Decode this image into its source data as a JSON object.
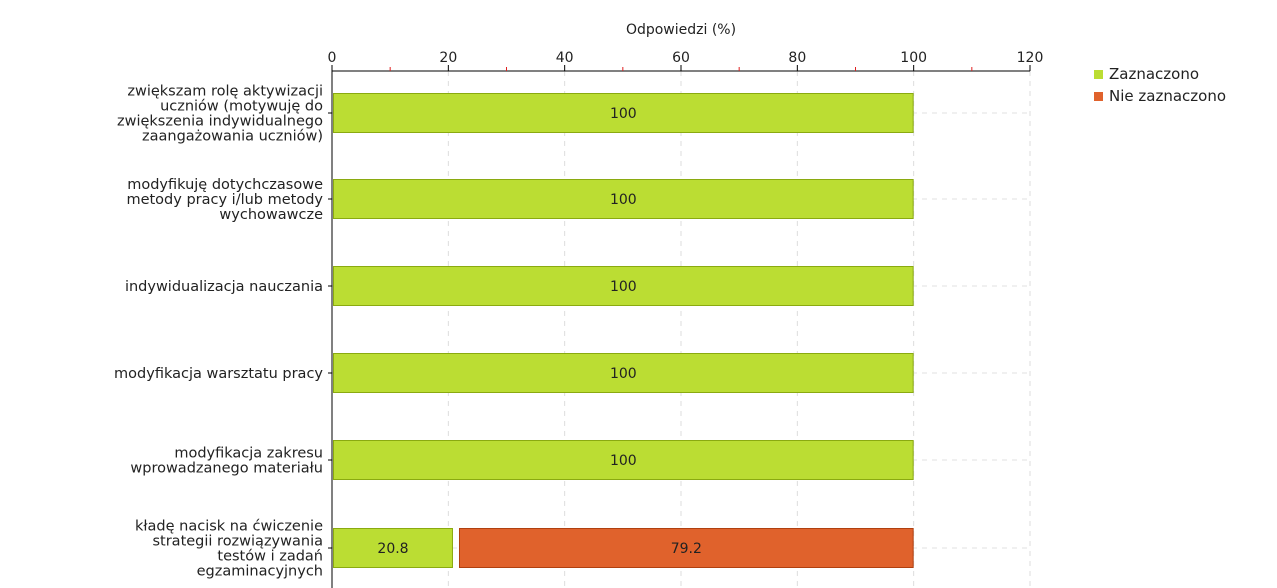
{
  "chart_data": {
    "type": "bar",
    "orientation": "horizontal",
    "stacked": true,
    "xlabel": "Odpowiedzi (%)",
    "xlim": [
      0,
      120
    ],
    "xticks": [
      0,
      20,
      40,
      60,
      80,
      100,
      120
    ],
    "x_axis_position": "top",
    "grid": true,
    "legend_position": "top-right",
    "categories": [
      [
        "zwiększam rolę aktywizacji",
        "uczniów (motywuję do",
        "zwiększenia indywidualnego",
        "zaangażowania uczniów)"
      ],
      [
        "modyfikuję dotychczasowe",
        "metody pracy i/lub metody",
        "wychowawcze"
      ],
      [
        "indywidualizacja nauczania"
      ],
      [
        "modyfikacja warsztatu pracy"
      ],
      [
        "modyfikacja zakresu",
        "wprowadzanego materiału"
      ],
      [
        "kładę nacisk na ćwiczenie",
        "strategii rozwiązywania",
        "testów i zadań",
        "egzaminacyjnych"
      ]
    ],
    "series": [
      {
        "name": "Zaznaczono",
        "color": "#bbdd33",
        "stroke": "#8aaa10",
        "values": [
          100,
          100,
          100,
          100,
          100,
          20.8
        ]
      },
      {
        "name": "Nie zaznaczono",
        "color": "#e0622c",
        "stroke": "#b04010",
        "values": [
          0,
          0,
          0,
          0,
          0,
          79.2
        ]
      }
    ],
    "data_labels": [
      [
        "100",
        "100",
        "100",
        "100",
        "100",
        "20.8"
      ],
      [
        "",
        "",
        "",
        "",
        "",
        "79.2"
      ]
    ]
  }
}
